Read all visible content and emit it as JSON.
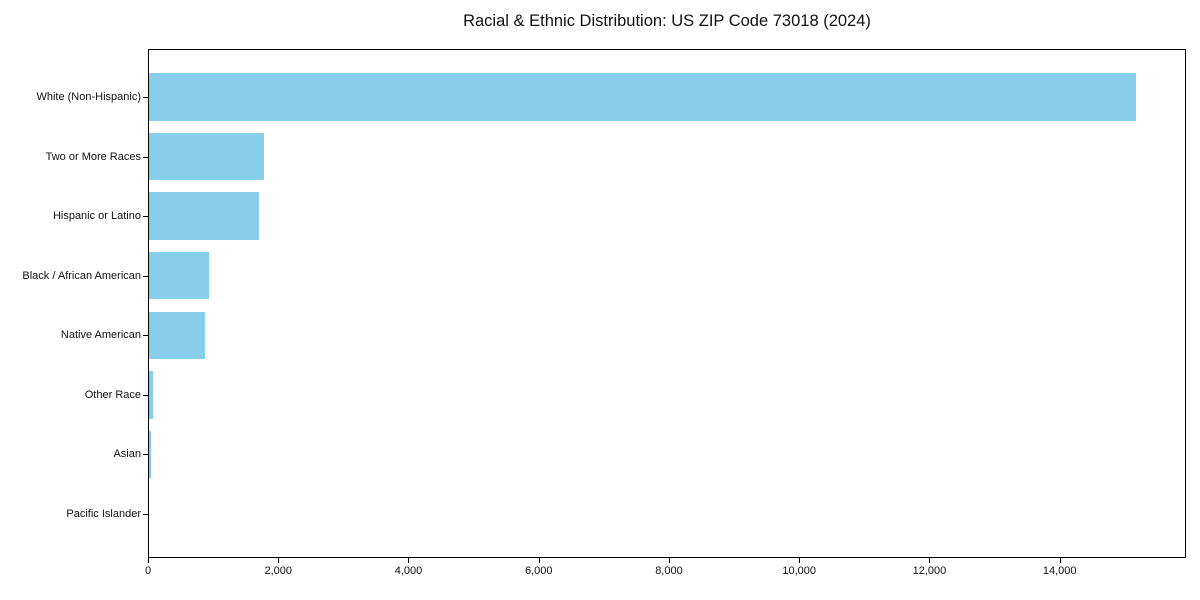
{
  "chart_data": {
    "type": "bar",
    "orientation": "horizontal",
    "title": "Racial & Ethnic Distribution: US ZIP Code 73018 (2024)",
    "xlabel": "",
    "ylabel": "",
    "categories": [
      "White (Non-Hispanic)",
      "Two or More Races",
      "Hispanic or Latino",
      "Black / African American",
      "Native American",
      "Other Race",
      "Asian",
      "Pacific Islander"
    ],
    "values": [
      15180,
      1770,
      1700,
      920,
      865,
      55,
      25,
      0
    ],
    "xlim": [
      0,
      15940
    ],
    "xticks": [
      0,
      2000,
      4000,
      6000,
      8000,
      10000,
      12000,
      14000
    ],
    "xtick_labels": [
      "0",
      "2,000",
      "4,000",
      "6,000",
      "8,000",
      "10,000",
      "12,000",
      "14,000"
    ],
    "bar_color": "#87CEEB",
    "axis_color": "#000000",
    "text_color": "#111111",
    "background_color": "#ffffff",
    "grid": false,
    "legend_position": "none"
  }
}
